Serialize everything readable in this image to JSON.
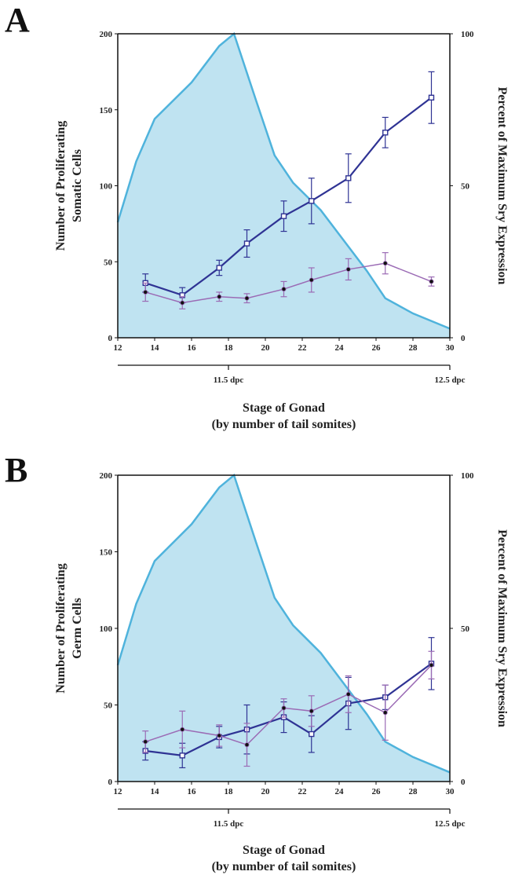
{
  "chart_data": [
    {
      "type": "line",
      "panel_label": "A",
      "xlabel": "Stage of Gonad\n(by number of tail somites)",
      "ylabel": "Number of Proliferating\nSomatic Cells",
      "y2label": "Percent of Maximum Sry Expression",
      "xlim": [
        12,
        30
      ],
      "ylim": [
        0,
        200
      ],
      "y2lim": [
        0,
        100
      ],
      "x_ticks": [
        12,
        14,
        16,
        18,
        20,
        22,
        24,
        26,
        28,
        30
      ],
      "y_ticks": [
        0,
        50,
        100,
        150,
        200
      ],
      "y2_ticks": [
        0,
        50,
        100
      ],
      "stage_marks": [
        {
          "label": "11.5 dpc",
          "x": 18
        },
        {
          "label": "12.5 dpc",
          "x": 30
        }
      ],
      "area": {
        "axis": "right",
        "color": "#bfe3f1",
        "edge_color": "#4fb3dc",
        "x": [
          12,
          13,
          14,
          16,
          17.5,
          18.3,
          19.5,
          20.5,
          21.5,
          23,
          24.5,
          25.5,
          26.5,
          28,
          30
        ],
        "y": [
          38,
          58,
          72,
          84,
          96,
          100,
          78,
          60,
          51,
          42,
          30,
          22,
          13,
          8,
          3
        ]
      },
      "series": [
        {
          "color": "#2f3394",
          "marker": "open-square",
          "x": [
            13.5,
            15.5,
            17.5,
            19,
            21,
            22.5,
            24.5,
            26.5,
            29
          ],
          "y": [
            36,
            28,
            46,
            62,
            80,
            90,
            105,
            135,
            158
          ],
          "err": [
            6,
            5,
            5,
            9,
            10,
            15,
            16,
            10,
            17
          ]
        },
        {
          "color": "#9b6bb5",
          "marker": "dot",
          "x": [
            13.5,
            15.5,
            17.5,
            19,
            21,
            22.5,
            24.5,
            26.5,
            29
          ],
          "y": [
            30,
            23,
            27,
            26,
            32,
            38,
            45,
            49,
            37
          ],
          "err": [
            6,
            4,
            3,
            3,
            5,
            8,
            7,
            7,
            3
          ]
        }
      ]
    },
    {
      "type": "line",
      "panel_label": "B",
      "xlabel": "Stage of Gonad\n(by number of tail somites)",
      "ylabel": "Number of Proliferating\nGerm Cells",
      "y2label": "Percent of Maximum Sry Expression",
      "xlim": [
        12,
        30
      ],
      "ylim": [
        0,
        200
      ],
      "y2lim": [
        0,
        100
      ],
      "x_ticks": [
        12,
        14,
        16,
        18,
        20,
        22,
        24,
        26,
        28,
        30
      ],
      "y_ticks": [
        0,
        50,
        100,
        150,
        200
      ],
      "y2_ticks": [
        0,
        50,
        100
      ],
      "stage_marks": [
        {
          "label": "11.5 dpc",
          "x": 18
        },
        {
          "label": "12.5 dpc",
          "x": 30
        }
      ],
      "area": {
        "axis": "right",
        "color": "#bfe3f1",
        "edge_color": "#4fb3dc",
        "x": [
          12,
          13,
          14,
          16,
          17.5,
          18.3,
          19.5,
          20.5,
          21.5,
          23,
          24.5,
          25.5,
          26.5,
          28,
          30
        ],
        "y": [
          38,
          58,
          72,
          84,
          96,
          100,
          78,
          60,
          51,
          42,
          30,
          22,
          13,
          8,
          3
        ]
      },
      "series": [
        {
          "color": "#2f3394",
          "marker": "open-square",
          "x": [
            13.5,
            15.5,
            17.5,
            19,
            21,
            22.5,
            24.5,
            26.5,
            29
          ],
          "y": [
            20,
            17,
            29,
            34,
            42,
            31,
            51,
            55,
            77
          ],
          "err": [
            6,
            8,
            7,
            16,
            10,
            12,
            17,
            8,
            17
          ]
        },
        {
          "color": "#9b6bb5",
          "marker": "dot",
          "x": [
            13.5,
            15.5,
            17.5,
            19,
            21,
            22.5,
            24.5,
            26.5,
            29
          ],
          "y": [
            26,
            34,
            30,
            24,
            48,
            46,
            57,
            45,
            76
          ],
          "err": [
            7,
            12,
            7,
            14,
            6,
            10,
            12,
            18,
            9
          ]
        }
      ]
    }
  ]
}
